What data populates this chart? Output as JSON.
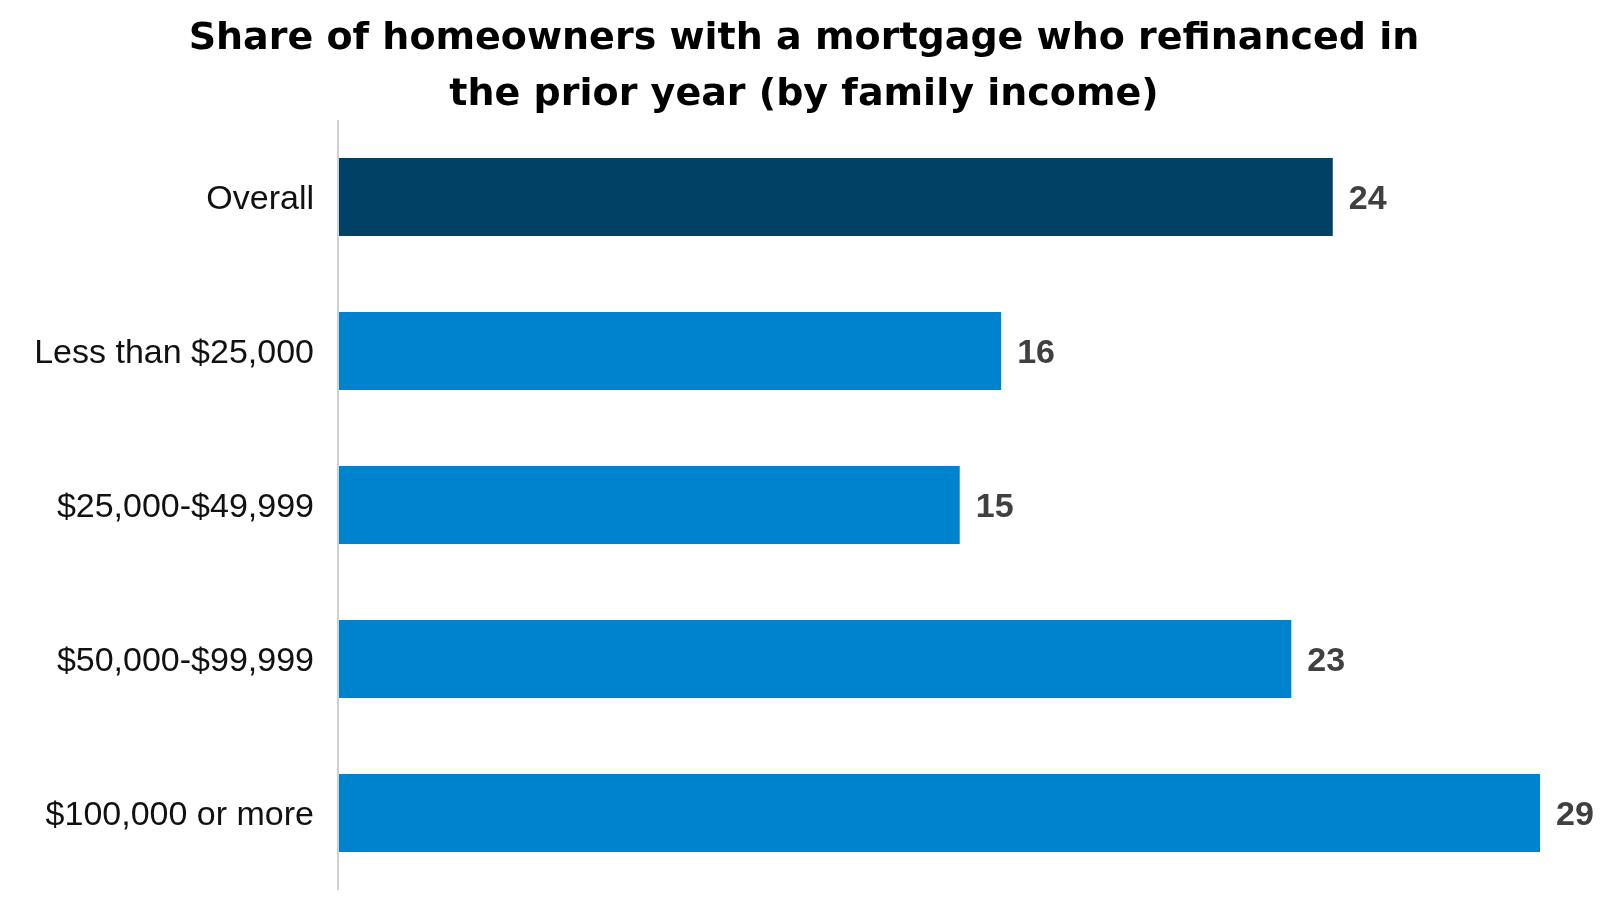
{
  "chart_data": {
    "type": "bar",
    "orientation": "horizontal",
    "title": "Share of homeowners with a mortgage who refinanced in the prior year (by family income)",
    "categories": [
      "Overall",
      "Less than $25,000",
      "$25,000-$49,999",
      "$50,000-$99,999",
      "$100,000 or more"
    ],
    "values": [
      24,
      16,
      15,
      23,
      29
    ],
    "colors": [
      "#004165",
      "#0083cf",
      "#0083cf",
      "#0083cf",
      "#0083cf"
    ],
    "data_labels": true
  }
}
